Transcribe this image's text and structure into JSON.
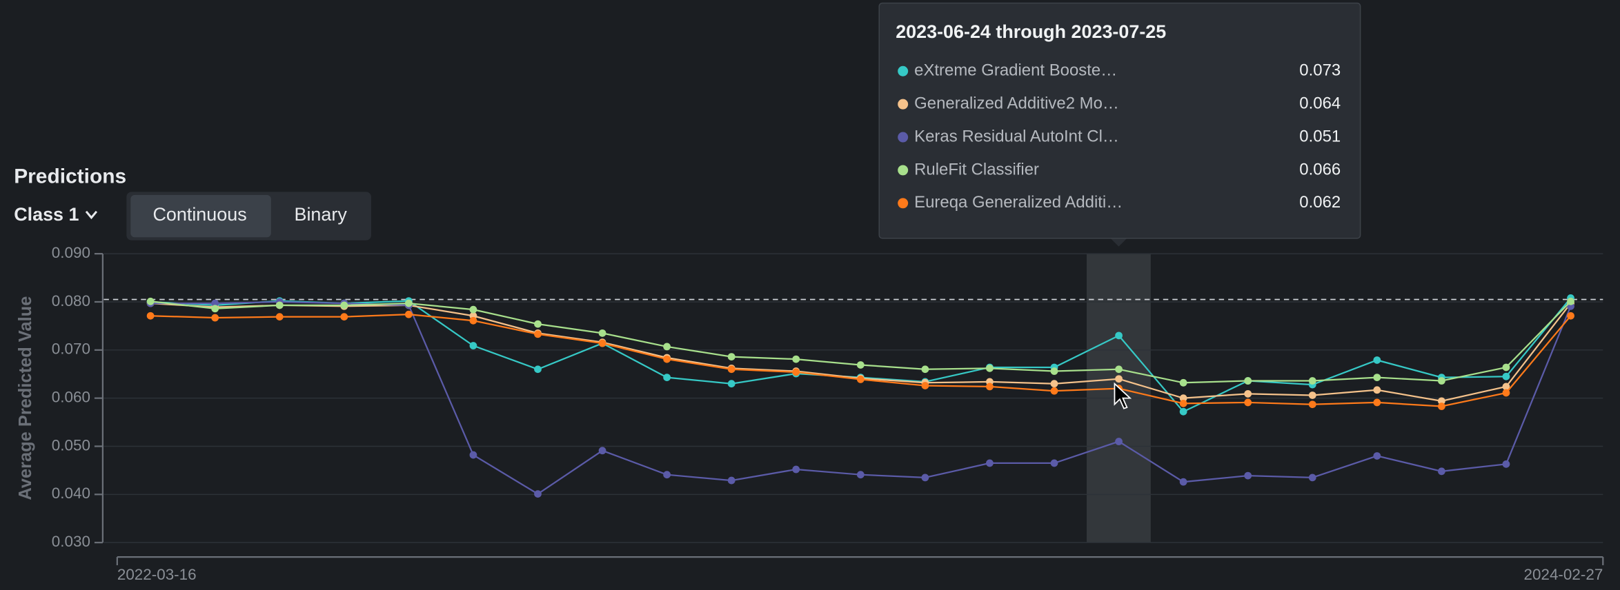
{
  "header": {
    "title": "Predictions",
    "class_selector": "Class 1",
    "toggle": [
      "Continuous",
      "Binary"
    ]
  },
  "tooltip": {
    "title": "2023-06-24 through 2023-07-25",
    "index": 15
  },
  "chart_data": {
    "type": "line",
    "ylabel": "Average Predicted Value",
    "ylim": [
      0.03,
      0.09
    ],
    "yticks": [
      {
        "value": 0.03,
        "label": "0.030"
      },
      {
        "value": 0.04,
        "label": "0.040"
      },
      {
        "value": 0.05,
        "label": "0.050"
      },
      {
        "value": 0.06,
        "label": "0.060"
      },
      {
        "value": 0.07,
        "label": "0.070"
      },
      {
        "value": 0.08,
        "label": "0.080"
      },
      {
        "value": 0.09,
        "label": "0.090"
      }
    ],
    "xrange_labels": [
      "2022-03-16",
      "2024-02-27"
    ],
    "categories": [
      null,
      null,
      null,
      null,
      null,
      null,
      null,
      null,
      null,
      null,
      null,
      null,
      null,
      null,
      null,
      null,
      null,
      null,
      null,
      null,
      null,
      null,
      null
    ],
    "reference_line": 0.0805,
    "grid": true,
    "series": [
      {
        "name": "eXtreme Gradient Booste…",
        "color": "#36c9c6",
        "values": [
          0.08,
          0.0793,
          0.0802,
          0.0797,
          0.0802,
          0.0709,
          0.066,
          0.0714,
          0.0643,
          0.063,
          0.0651,
          0.0643,
          0.0634,
          0.0664,
          0.0664,
          0.073,
          0.0572,
          0.0636,
          0.0628,
          0.0679,
          0.0643,
          0.0645,
          0.0808
        ]
      },
      {
        "name": "Generalized Additive2 Mo…",
        "color": "#f5c28b",
        "values": [
          0.0797,
          0.0789,
          0.0793,
          0.0791,
          0.0793,
          0.0771,
          0.0735,
          0.0716,
          0.0684,
          0.0662,
          0.0656,
          0.0641,
          0.0632,
          0.0634,
          0.063,
          0.064,
          0.06,
          0.0609,
          0.0606,
          0.0617,
          0.0594,
          0.0624,
          0.0797
        ]
      },
      {
        "name": "Keras Residual AutoInt Cl…",
        "color": "#5b5ba8",
        "values": [
          0.0797,
          0.0797,
          0.08,
          0.0797,
          0.0793,
          0.0482,
          0.0401,
          0.0491,
          0.0441,
          0.0429,
          0.0452,
          0.0441,
          0.0435,
          0.0465,
          0.0465,
          0.051,
          0.0426,
          0.0439,
          0.0435,
          0.048,
          0.0448,
          0.0463,
          0.0791
        ]
      },
      {
        "name": "RuleFit Classifier",
        "color": "#a8e08c",
        "values": [
          0.0801,
          0.0786,
          0.0793,
          0.0793,
          0.0797,
          0.0784,
          0.0754,
          0.0735,
          0.0707,
          0.0686,
          0.0681,
          0.0669,
          0.066,
          0.0662,
          0.0656,
          0.066,
          0.0632,
          0.0636,
          0.0636,
          0.0643,
          0.0636,
          0.0664,
          0.0801
        ]
      },
      {
        "name": "Eureqa Generalized Additi…",
        "color": "#ff7a1a",
        "values": [
          0.0771,
          0.0767,
          0.0769,
          0.0769,
          0.0774,
          0.0761,
          0.0733,
          0.0714,
          0.0681,
          0.066,
          0.0654,
          0.0639,
          0.0626,
          0.0624,
          0.0615,
          0.062,
          0.0589,
          0.0591,
          0.0587,
          0.0591,
          0.0583,
          0.0611,
          0.0771
        ]
      }
    ]
  }
}
